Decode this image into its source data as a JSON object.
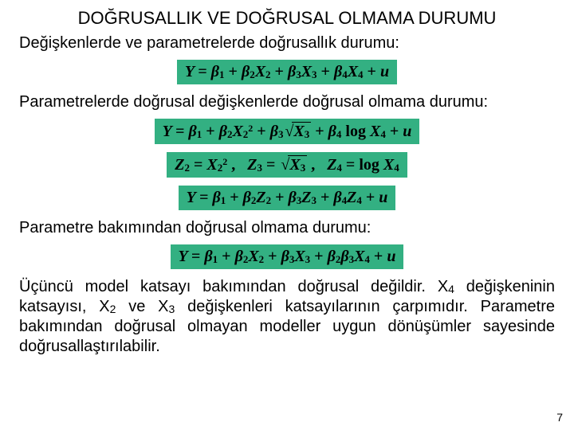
{
  "colors": {
    "eq_bg": "#33b082",
    "text": "#000000",
    "page_bg": "#ffffff"
  },
  "title": "DOĞRUSALLIK VE DOĞRUSAL OLMAMA DURUMU",
  "p1": "Değişkenlerde ve parametrelerde doğrusallık durumu:",
  "p2": "Parametrelerde doğrusal değişkenlerde doğrusal olmama durumu:",
  "p3": "Parametre bakımından doğrusal olmama durumu:",
  "p4_pre": "Üçüncü model katsayı bakımından doğrusal değildir. X",
  "p4_sub1": "4",
  "p4_mid1": " değişkeninin katsayısı, X",
  "p4_sub2": "2",
  "p4_mid2": " ve X",
  "p4_sub3": "3",
  "p4_post": " değişkenleri katsayılarının çarpımıdır. Parametre bakımından doğrusal olmayan modeller uygun dönüşümler sayesinde doğrusallaştırılabilir.",
  "eq": {
    "e1": {
      "lhs": "Y",
      "terms": [
        "β₁",
        "β₂X₂",
        "β₃X₃",
        "β₄X₄",
        "u"
      ]
    },
    "e2": {
      "lhs": "Y",
      "rhs": "β₁ + β₂X₂² + β₃√X₃ + β₄ log X₄ + u"
    },
    "e3": {
      "parts": [
        "Z₂ = X₂²",
        "Z₃ = √X₃",
        "Z₄ = log X₄"
      ]
    },
    "e4": {
      "lhs": "Y",
      "terms": [
        "β₁",
        "β₂Z₂",
        "β₃Z₃",
        "β₄Z₄",
        "u"
      ]
    },
    "e5": {
      "lhs": "Y",
      "terms": [
        "β₁",
        "β₂X₂",
        "β₃X₃",
        "β₂β₃X₄",
        "u"
      ]
    },
    "style": {
      "font_family": "Times New Roman",
      "font_weight": "bold",
      "font_style": "italic",
      "fontsize": 20,
      "bg": "#33b082"
    }
  },
  "pagenum": "7",
  "fonts": {
    "body": "Arial",
    "body_size": 20,
    "title_size": 22
  }
}
